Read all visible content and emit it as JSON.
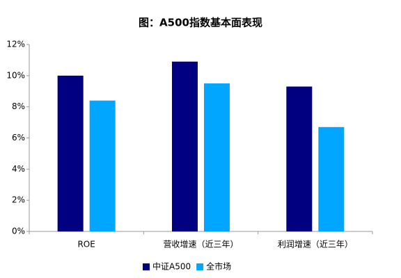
{
  "chart_data": {
    "type": "bar",
    "title": "图：A500指数基本面表现",
    "categories": [
      "ROE",
      "营收增速（近三年）",
      "利润增速（近三年）"
    ],
    "series": [
      {
        "name": "中证A500",
        "color": "#000080",
        "values": [
          10.0,
          10.9,
          9.3
        ]
      },
      {
        "name": "全市场",
        "color": "#00a6ff",
        "values": [
          8.4,
          9.5,
          6.7
        ]
      }
    ],
    "ylim": [
      0,
      12
    ],
    "yticks": [
      {
        "value": 0,
        "label": "0%"
      },
      {
        "value": 2,
        "label": "2%"
      },
      {
        "value": 4,
        "label": "4%"
      },
      {
        "value": 6,
        "label": "6%"
      },
      {
        "value": 8,
        "label": "8%"
      },
      {
        "value": 10,
        "label": "10%"
      },
      {
        "value": 12,
        "label": "12%"
      }
    ],
    "grid": false,
    "legend": "bottom"
  }
}
